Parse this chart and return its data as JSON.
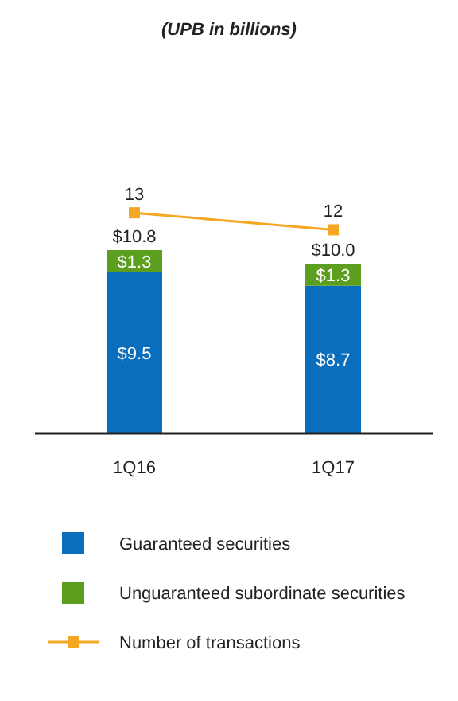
{
  "chart_data": {
    "type": "bar",
    "title": "(UPB in billions)",
    "categories": [
      "1Q16",
      "1Q17"
    ],
    "stacked": true,
    "tick_labels": "x",
    "legend": "bottom",
    "totals": [
      "$10.8",
      "$10.0"
    ],
    "series": [
      {
        "name": "Guaranteed securities",
        "color": "#0a6ebd",
        "values": [
          9.5,
          8.7
        ],
        "value_labels": [
          "$9.5",
          "$8.7"
        ]
      },
      {
        "name": "Unguaranteed subordinate securities",
        "color": "#5c9e1e",
        "values": [
          1.3,
          1.3
        ],
        "value_labels": [
          "$1.3",
          "$1.3"
        ]
      },
      {
        "name": "Number of transactions",
        "type": "line",
        "marker": "square",
        "color": "#f5a623",
        "values": [
          13,
          12
        ],
        "value_labels": [
          "13",
          "12"
        ]
      }
    ]
  }
}
